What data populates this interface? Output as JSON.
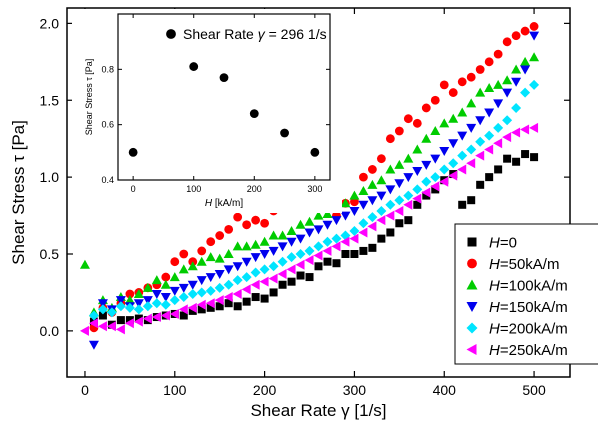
{
  "chart_data": [
    {
      "type": "scatter",
      "xlabel": "Shear Rate γ  [1/s]",
      "ylabel": "Shear Stress τ [Pa]",
      "xlim": [
        -20,
        540
      ],
      "ylim": [
        -0.3,
        2.1
      ],
      "xticks": [
        0,
        100,
        200,
        300,
        400,
        500
      ],
      "yticks": [
        0.0,
        0.5,
        1.0,
        1.5,
        2.0
      ],
      "ytick_labels": [
        "0.0",
        "0.5",
        "1.0",
        "1.5",
        "2.0"
      ],
      "legend_position": "bottom-right",
      "x": [
        0,
        10,
        20,
        30,
        40,
        50,
        60,
        70,
        80,
        90,
        100,
        110,
        120,
        130,
        140,
        150,
        160,
        170,
        180,
        190,
        200,
        210,
        220,
        230,
        240,
        250,
        260,
        270,
        280,
        290,
        300,
        310,
        320,
        330,
        340,
        350,
        360,
        370,
        380,
        390,
        400,
        410,
        420,
        430,
        440,
        450,
        460,
        470,
        480,
        490,
        500
      ],
      "series": [
        {
          "name": "H=0",
          "name_parts": [
            "H",
            "=0"
          ],
          "color": "#000000",
          "marker": "square",
          "values": [
            null,
            0.06,
            0.1,
            0.04,
            0.07,
            0.07,
            0.08,
            0.07,
            0.09,
            0.1,
            0.11,
            0.1,
            0.13,
            0.14,
            0.15,
            0.16,
            0.18,
            0.16,
            0.19,
            0.22,
            0.21,
            0.25,
            0.3,
            0.32,
            0.36,
            0.35,
            0.42,
            0.45,
            0.44,
            0.5,
            0.5,
            0.52,
            0.54,
            0.6,
            0.64,
            0.7,
            0.72,
            0.82,
            0.88,
            0.92,
            0.98,
            1.02,
            0.82,
            0.85,
            0.95,
            1.0,
            1.05,
            1.12,
            1.1,
            1.15,
            1.13
          ]
        },
        {
          "name": "H=50kA/m",
          "name_parts": [
            "H",
            "=50kA/m"
          ],
          "color": "#ff0000",
          "marker": "circle",
          "values": [
            null,
            0.02,
            0.15,
            0.12,
            0.18,
            0.24,
            0.25,
            0.28,
            0.3,
            0.35,
            0.45,
            0.5,
            0.45,
            0.52,
            0.58,
            0.62,
            0.66,
            0.74,
            0.69,
            0.72,
            0.7,
            0.78,
            0.85,
            0.82,
            0.95,
            0.9,
            0.82,
            0.82,
            0.75,
            0.83,
            0.84,
            1.0,
            1.05,
            1.12,
            1.25,
            1.3,
            1.38,
            1.35,
            1.45,
            1.5,
            1.6,
            1.55,
            1.62,
            1.65,
            1.7,
            1.75,
            1.8,
            1.88,
            1.92,
            1.95,
            1.98
          ]
        },
        {
          "name": "H=100kA/m",
          "name_parts": [
            "H",
            "=100kA/m"
          ],
          "color": "#00cc00",
          "marker": "triangle-up",
          "values": [
            0.43,
            0.12,
            0.2,
            0.15,
            0.22,
            0.2,
            0.24,
            0.28,
            0.33,
            0.3,
            0.35,
            0.4,
            0.42,
            0.45,
            0.48,
            0.47,
            0.5,
            0.55,
            0.55,
            0.56,
            0.58,
            0.62,
            0.62,
            0.65,
            0.69,
            0.71,
            0.75,
            0.76,
            0.8,
            0.83,
            0.88,
            0.91,
            0.95,
            0.98,
            1.05,
            1.08,
            1.12,
            1.18,
            1.25,
            1.3,
            1.35,
            1.38,
            1.42,
            1.48,
            1.55,
            1.58,
            1.6,
            1.63,
            1.7,
            1.75,
            1.78
          ]
        },
        {
          "name": "H=150kA/m",
          "name_parts": [
            "H",
            "=150kA/m"
          ],
          "color": "#0000ee",
          "marker": "triangle-down",
          "values": [
            null,
            -0.09,
            0.18,
            0.14,
            0.2,
            0.16,
            0.18,
            0.2,
            0.24,
            0.22,
            0.26,
            0.28,
            0.3,
            0.33,
            0.35,
            0.37,
            0.4,
            0.42,
            0.45,
            0.48,
            0.5,
            0.52,
            0.55,
            0.58,
            0.6,
            0.64,
            0.66,
            0.69,
            0.72,
            0.75,
            0.78,
            0.82,
            0.85,
            0.88,
            0.92,
            0.96,
            1.0,
            1.04,
            1.08,
            1.12,
            1.17,
            1.22,
            1.27,
            1.32,
            1.37,
            1.42,
            1.48,
            1.55,
            1.62,
            1.7,
            1.92
          ]
        },
        {
          "name": "H=200kA/m",
          "name_parts": [
            "H",
            "=200kA/m"
          ],
          "color": "#00e5ff",
          "marker": "diamond",
          "values": [
            null,
            0.1,
            0.14,
            0.12,
            0.16,
            0.15,
            0.14,
            0.16,
            0.18,
            0.17,
            0.2,
            0.22,
            0.24,
            0.25,
            0.26,
            0.28,
            0.3,
            0.33,
            0.35,
            0.38,
            0.4,
            0.42,
            0.45,
            0.48,
            0.5,
            0.52,
            0.55,
            0.58,
            0.6,
            0.62,
            0.65,
            0.7,
            0.74,
            0.78,
            0.82,
            0.85,
            0.88,
            0.92,
            0.97,
            1.0,
            1.05,
            1.09,
            1.14,
            1.18,
            1.23,
            1.27,
            1.32,
            1.37,
            1.45,
            1.55,
            1.6
          ]
        },
        {
          "name": "H=250kA/m",
          "name_parts": [
            "H",
            "=250kA/m"
          ],
          "color": "#ff00ff",
          "marker": "triangle-left",
          "values": [
            0.0,
            0.05,
            0.03,
            0.03,
            0.01,
            0.05,
            0.06,
            0.08,
            0.09,
            0.1,
            0.11,
            0.14,
            0.15,
            0.17,
            0.18,
            0.2,
            0.22,
            0.24,
            0.27,
            0.3,
            0.32,
            0.34,
            0.37,
            0.4,
            0.43,
            0.46,
            0.49,
            0.52,
            0.55,
            0.58,
            0.6,
            0.64,
            0.68,
            0.72,
            0.75,
            0.78,
            0.82,
            0.86,
            0.9,
            0.94,
            0.97,
            1.01,
            1.05,
            1.09,
            1.14,
            1.18,
            1.22,
            1.26,
            1.29,
            1.31,
            1.32
          ]
        }
      ]
    },
    {
      "type": "scatter",
      "legend": "Shear Rate γ = 296 1/s",
      "legend_parts": [
        "Shear Rate ",
        "γ",
        " = 296 1/s"
      ],
      "legend_position": "top-right",
      "xlabel": "H [kA/m]",
      "xlabel_parts": [
        "H",
        " [kA/m]"
      ],
      "ylabel": "Shear Stress τ [Pa]",
      "xlim": [
        -25,
        325
      ],
      "ylim": [
        0.4,
        1.0
      ],
      "xticks": [
        0,
        100,
        200,
        300
      ],
      "yticks": [
        0.4,
        0.6,
        0.8
      ],
      "ytick_labels": [
        "0.4",
        "0.6",
        "0.8"
      ],
      "series": [
        {
          "color": "#000000",
          "marker": "circle",
          "x": [
            0,
            100,
            150,
            200,
            250,
            300
          ],
          "values": [
            0.5,
            0.81,
            0.77,
            0.64,
            0.57,
            0.5
          ]
        }
      ]
    }
  ]
}
